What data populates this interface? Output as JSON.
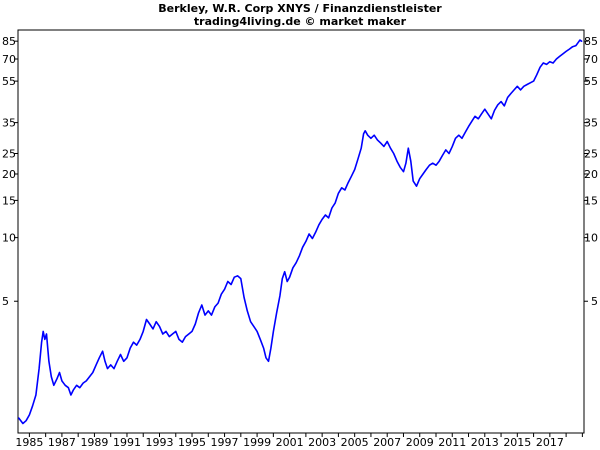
{
  "chart_data": {
    "type": "line",
    "title": "Berkley, W.R. Corp XNYS / Finanzdienstleister",
    "subtitle": "trading4living.de © market maker",
    "y_scale": "log",
    "y_ticks": [
      5,
      10,
      15,
      20,
      25,
      35,
      55,
      70,
      85
    ],
    "y_tick_labels": [
      "5",
      "10",
      "15",
      "20",
      "25",
      "35",
      "55",
      "70",
      "85"
    ],
    "x_ticks": [
      1985,
      1987,
      1989,
      1991,
      1993,
      1995,
      1997,
      1999,
      2001,
      2003,
      2005,
      2007,
      2009,
      2011,
      2013,
      2015,
      2017
    ],
    "x_tick_labels": [
      "1985",
      "1987",
      "1989",
      "1991",
      "1993",
      "1995",
      "1997",
      "1999",
      "2001",
      "2003",
      "2005",
      "2007",
      "2009",
      "2011",
      "2013",
      "2015",
      "2017"
    ],
    "xlim": [
      1984.3,
      2019.1
    ],
    "ylim": [
      1.19,
      96
    ],
    "line_color": "#0000ff",
    "grid": false,
    "series": [
      {
        "values": [
          [
            1984.35,
            1.4
          ],
          [
            1984.6,
            1.32
          ],
          [
            1984.8,
            1.36
          ],
          [
            1985.0,
            1.45
          ],
          [
            1985.2,
            1.6
          ],
          [
            1985.4,
            1.8
          ],
          [
            1985.6,
            2.4
          ],
          [
            1985.75,
            3.2
          ],
          [
            1985.85,
            3.6
          ],
          [
            1985.95,
            3.3
          ],
          [
            1986.05,
            3.5
          ],
          [
            1986.2,
            2.6
          ],
          [
            1986.35,
            2.2
          ],
          [
            1986.5,
            2.0
          ],
          [
            1986.7,
            2.15
          ],
          [
            1986.85,
            2.3
          ],
          [
            1987.0,
            2.1
          ],
          [
            1987.2,
            2.0
          ],
          [
            1987.4,
            1.95
          ],
          [
            1987.55,
            1.8
          ],
          [
            1987.7,
            1.9
          ],
          [
            1987.9,
            2.0
          ],
          [
            1988.1,
            1.95
          ],
          [
            1988.3,
            2.05
          ],
          [
            1988.5,
            2.1
          ],
          [
            1988.7,
            2.2
          ],
          [
            1988.9,
            2.3
          ],
          [
            1989.1,
            2.5
          ],
          [
            1989.3,
            2.7
          ],
          [
            1989.5,
            2.9
          ],
          [
            1989.65,
            2.6
          ],
          [
            1989.8,
            2.4
          ],
          [
            1990.0,
            2.5
          ],
          [
            1990.2,
            2.4
          ],
          [
            1990.4,
            2.6
          ],
          [
            1990.6,
            2.8
          ],
          [
            1990.8,
            2.6
          ],
          [
            1991.0,
            2.7
          ],
          [
            1991.2,
            3.0
          ],
          [
            1991.4,
            3.2
          ],
          [
            1991.6,
            3.1
          ],
          [
            1991.8,
            3.3
          ],
          [
            1992.0,
            3.6
          ],
          [
            1992.2,
            4.1
          ],
          [
            1992.4,
            3.9
          ],
          [
            1992.6,
            3.7
          ],
          [
            1992.8,
            4.0
          ],
          [
            1993.0,
            3.8
          ],
          [
            1993.2,
            3.5
          ],
          [
            1993.4,
            3.6
          ],
          [
            1993.6,
            3.4
          ],
          [
            1993.8,
            3.5
          ],
          [
            1994.0,
            3.6
          ],
          [
            1994.2,
            3.3
          ],
          [
            1994.4,
            3.2
          ],
          [
            1994.6,
            3.4
          ],
          [
            1994.8,
            3.5
          ],
          [
            1995.0,
            3.6
          ],
          [
            1995.2,
            3.9
          ],
          [
            1995.4,
            4.4
          ],
          [
            1995.6,
            4.8
          ],
          [
            1995.8,
            4.3
          ],
          [
            1996.0,
            4.5
          ],
          [
            1996.2,
            4.3
          ],
          [
            1996.4,
            4.7
          ],
          [
            1996.6,
            4.9
          ],
          [
            1996.8,
            5.4
          ],
          [
            1997.0,
            5.7
          ],
          [
            1997.2,
            6.2
          ],
          [
            1997.4,
            6.0
          ],
          [
            1997.6,
            6.5
          ],
          [
            1997.8,
            6.6
          ],
          [
            1998.0,
            6.4
          ],
          [
            1998.2,
            5.2
          ],
          [
            1998.4,
            4.5
          ],
          [
            1998.6,
            4.0
          ],
          [
            1998.8,
            3.8
          ],
          [
            1999.0,
            3.6
          ],
          [
            1999.2,
            3.3
          ],
          [
            1999.4,
            3.0
          ],
          [
            1999.55,
            2.7
          ],
          [
            1999.7,
            2.6
          ],
          [
            1999.85,
            3.0
          ],
          [
            2000.0,
            3.6
          ],
          [
            2000.2,
            4.4
          ],
          [
            2000.4,
            5.3
          ],
          [
            2000.55,
            6.4
          ],
          [
            2000.7,
            6.9
          ],
          [
            2000.85,
            6.2
          ],
          [
            2001.0,
            6.5
          ],
          [
            2001.2,
            7.2
          ],
          [
            2001.4,
            7.6
          ],
          [
            2001.6,
            8.2
          ],
          [
            2001.8,
            9.0
          ],
          [
            2002.0,
            9.6
          ],
          [
            2002.2,
            10.4
          ],
          [
            2002.4,
            9.9
          ],
          [
            2002.6,
            10.6
          ],
          [
            2002.8,
            11.5
          ],
          [
            2003.0,
            12.2
          ],
          [
            2003.2,
            12.8
          ],
          [
            2003.4,
            12.4
          ],
          [
            2003.6,
            13.8
          ],
          [
            2003.8,
            14.6
          ],
          [
            2004.0,
            16.2
          ],
          [
            2004.2,
            17.2
          ],
          [
            2004.4,
            16.8
          ],
          [
            2004.6,
            18.2
          ],
          [
            2004.8,
            19.5
          ],
          [
            2005.0,
            21.0
          ],
          [
            2005.2,
            23.5
          ],
          [
            2005.4,
            26.5
          ],
          [
            2005.55,
            31.0
          ],
          [
            2005.65,
            32.0
          ],
          [
            2005.8,
            30.5
          ],
          [
            2006.0,
            29.5
          ],
          [
            2006.2,
            30.5
          ],
          [
            2006.4,
            29.0
          ],
          [
            2006.6,
            28.0
          ],
          [
            2006.8,
            27.0
          ],
          [
            2007.0,
            28.5
          ],
          [
            2007.2,
            26.5
          ],
          [
            2007.4,
            25.0
          ],
          [
            2007.6,
            23.0
          ],
          [
            2007.8,
            21.5
          ],
          [
            2008.0,
            20.5
          ],
          [
            2008.15,
            22.5
          ],
          [
            2008.3,
            26.5
          ],
          [
            2008.45,
            23.0
          ],
          [
            2008.6,
            18.5
          ],
          [
            2008.8,
            17.5
          ],
          [
            2009.0,
            19.0
          ],
          [
            2009.2,
            20.0
          ],
          [
            2009.4,
            21.0
          ],
          [
            2009.6,
            22.0
          ],
          [
            2009.8,
            22.5
          ],
          [
            2010.0,
            22.0
          ],
          [
            2010.2,
            23.0
          ],
          [
            2010.4,
            24.5
          ],
          [
            2010.6,
            26.0
          ],
          [
            2010.8,
            25.0
          ],
          [
            2011.0,
            27.0
          ],
          [
            2011.2,
            29.5
          ],
          [
            2011.4,
            30.5
          ],
          [
            2011.6,
            29.5
          ],
          [
            2011.8,
            31.5
          ],
          [
            2012.0,
            33.5
          ],
          [
            2012.2,
            35.5
          ],
          [
            2012.4,
            37.5
          ],
          [
            2012.6,
            36.5
          ],
          [
            2012.8,
            38.5
          ],
          [
            2013.0,
            40.5
          ],
          [
            2013.2,
            38.5
          ],
          [
            2013.4,
            36.5
          ],
          [
            2013.6,
            40.0
          ],
          [
            2013.8,
            42.5
          ],
          [
            2014.0,
            44.0
          ],
          [
            2014.2,
            42.0
          ],
          [
            2014.4,
            46.0
          ],
          [
            2014.6,
            48.0
          ],
          [
            2014.8,
            50.0
          ],
          [
            2015.0,
            52.0
          ],
          [
            2015.2,
            50.0
          ],
          [
            2015.4,
            52.0
          ],
          [
            2015.6,
            53.0
          ],
          [
            2015.8,
            54.0
          ],
          [
            2016.0,
            55.0
          ],
          [
            2016.2,
            59.0
          ],
          [
            2016.4,
            64.0
          ],
          [
            2016.6,
            67.0
          ],
          [
            2016.8,
            66.0
          ],
          [
            2017.0,
            68.0
          ],
          [
            2017.2,
            67.0
          ],
          [
            2017.4,
            70.0
          ],
          [
            2017.6,
            72.0
          ],
          [
            2017.8,
            74.0
          ],
          [
            2018.0,
            76.0
          ],
          [
            2018.2,
            78.0
          ],
          [
            2018.4,
            80.0
          ],
          [
            2018.6,
            81.0
          ],
          [
            2018.75,
            84.0
          ],
          [
            2018.85,
            86.0
          ],
          [
            2018.95,
            85.0
          ]
        ]
      }
    ]
  }
}
